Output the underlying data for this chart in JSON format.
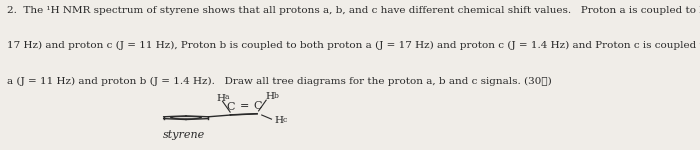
{
  "background_color": "#f0ede8",
  "text_line1": "2.  The ¹H NMR spectrum of styrene shows that all protons a, b, and c have different chemical shift values.   Proton a is coupled to both proton b (J =",
  "text_line2": "17 Hz) and proton c (J = 11 Hz), Proton b is coupled to both proton a (J = 17 Hz) and proton c (J = 1.4 Hz) and Proton c is coupled to both proton",
  "text_line3": "a (J = 11 Hz) and proton b (J = 1.4 Hz).   Draw all tree diagrams for the proton a, b and c signals. (30钅)",
  "molecule_label": "styrene",
  "text_color": "#2a2a2a",
  "font_size": 7.5
}
